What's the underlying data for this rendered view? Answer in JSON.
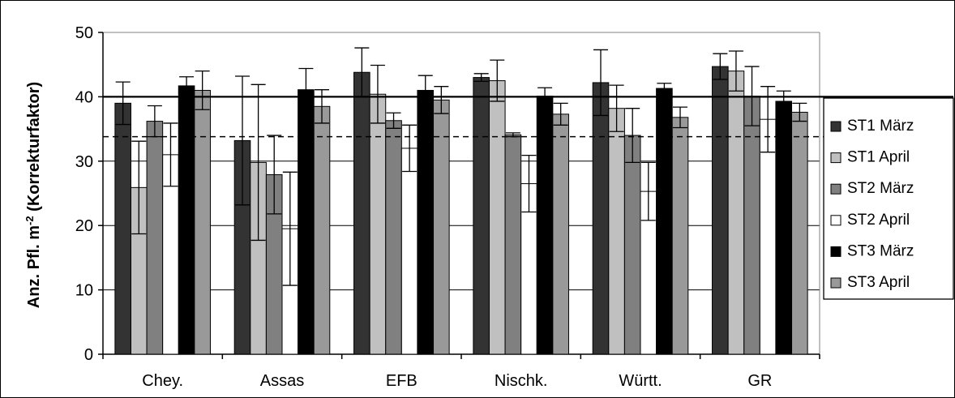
{
  "chart_data": {
    "type": "bar",
    "ylabel": "Anz. Pfl. m-2 (Korrekturfaktor)",
    "ylabel_parts": {
      "pre": "Anz. Pfl. m",
      "sup": "-2",
      "post": " (Korrekturfaktor)"
    },
    "ylim": [
      0,
      50
    ],
    "yticks": [
      0,
      10,
      20,
      30,
      40,
      50
    ],
    "grid": true,
    "legend_position": "right",
    "categories": [
      "Chey.",
      "Assas",
      "EFB",
      "Nischk.",
      "Württ.",
      "GR"
    ],
    "series": [
      {
        "name": "ST1 März",
        "color": "#333333",
        "values": [
          39.0,
          33.2,
          43.8,
          43.0,
          42.2,
          44.7
        ],
        "err": [
          3.3,
          10.0,
          3.8,
          0.6,
          5.1,
          2.0
        ]
      },
      {
        "name": "ST1 April",
        "color": "#c0c0c0",
        "values": [
          25.9,
          29.8,
          40.4,
          42.5,
          38.2,
          44.0
        ],
        "err": [
          7.2,
          12.1,
          4.5,
          3.2,
          3.6,
          3.1
        ]
      },
      {
        "name": "ST2 März",
        "color": "#808080",
        "values": [
          36.2,
          27.9,
          36.3,
          34.1,
          34.0,
          40.1
        ],
        "err": [
          2.4,
          6.1,
          1.2,
          0.3,
          4.2,
          4.6
        ]
      },
      {
        "name": "ST2 April",
        "color": "#ffffff",
        "values": [
          31.0,
          19.5,
          32.0,
          26.5,
          25.3,
          36.5
        ],
        "err": [
          4.9,
          8.8,
          3.6,
          4.4,
          4.5,
          5.1
        ]
      },
      {
        "name": "ST3 März",
        "color": "#000000",
        "values": [
          41.7,
          41.1,
          41.0,
          40.1,
          41.3,
          39.3
        ],
        "err": [
          1.4,
          3.3,
          2.3,
          1.3,
          0.8,
          1.6
        ]
      },
      {
        "name": "ST3 April",
        "color": "#999999",
        "values": [
          41.0,
          38.5,
          39.5,
          37.3,
          36.8,
          37.6
        ],
        "err": [
          3.0,
          2.6,
          2.1,
          1.7,
          1.6,
          1.4
        ]
      }
    ],
    "reference_lines": [
      {
        "style": "solid",
        "value": 40
      },
      {
        "style": "dashed",
        "value": 33.8
      }
    ]
  }
}
